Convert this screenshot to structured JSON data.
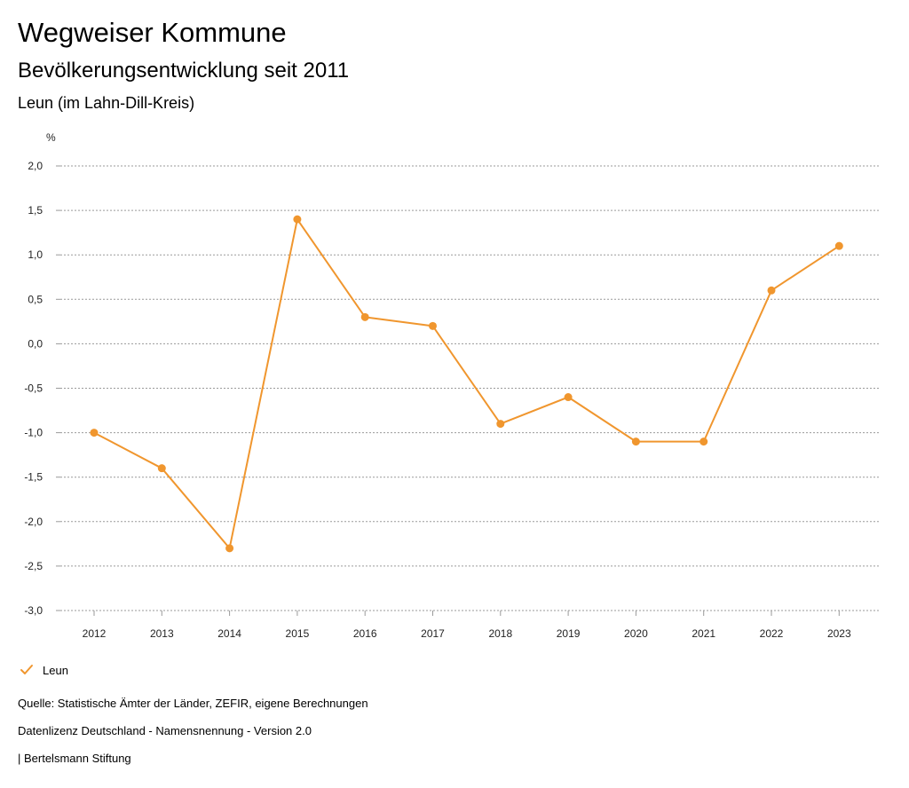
{
  "header": {
    "title": "Wegweiser Kommune",
    "subtitle": "Bevölkerungsentwicklung seit 2011",
    "region": "Leun (im Lahn-Dill-Kreis)"
  },
  "chart_data": {
    "type": "line",
    "ylabel": "%",
    "x": [
      "2012",
      "2013",
      "2014",
      "2015",
      "2016",
      "2017",
      "2018",
      "2019",
      "2020",
      "2021",
      "2022",
      "2023"
    ],
    "series": [
      {
        "name": "Leun",
        "color": "#f0962e",
        "values": [
          -1.0,
          -1.4,
          -2.3,
          1.4,
          0.3,
          0.2,
          -0.9,
          -0.6,
          -1.1,
          -1.1,
          0.6,
          1.1
        ]
      }
    ],
    "ylim": [
      -3.0,
      2.0
    ],
    "yticks": [
      "2,0",
      "1,5",
      "1,0",
      "0,5",
      "0,0",
      "-0,5",
      "-1,0",
      "-1,5",
      "-2,0",
      "-2,5",
      "-3,0"
    ],
    "grid": true,
    "legend_position": "bottom-left"
  },
  "legend": {
    "label": "Leun",
    "icon": "check-icon"
  },
  "footer": {
    "source": "Quelle: Statistische Ämter der Länder, ZEFIR, eigene Berechnungen",
    "license": "Datenlizenz Deutschland - Namensnennung - Version 2.0",
    "publisher": "| Bertelsmann Stiftung"
  }
}
